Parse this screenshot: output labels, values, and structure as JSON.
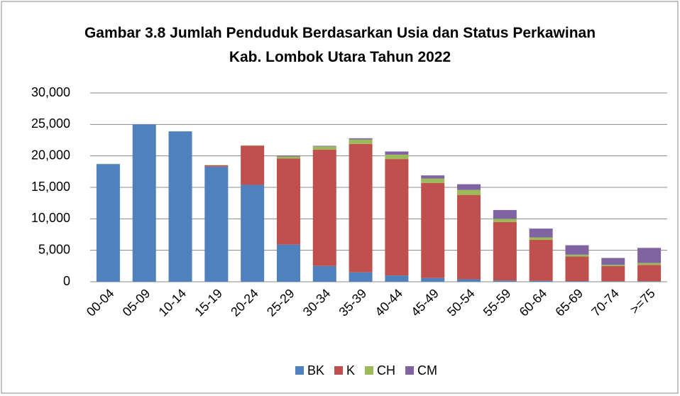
{
  "chart_data": {
    "type": "stacked_bar",
    "title": "Gambar 3.8 Jumlah Penduduk Berdasarkan Usia dan Status Perkawinan Kab. Lombok Utara Tahun 2022",
    "categories": [
      "00-04",
      "05-09",
      "10-14",
      "15-19",
      "20-24",
      "25-29",
      "30-34",
      "35-39",
      "40-44",
      "45-49",
      "50-54",
      "55-59",
      "60-64",
      "65-69",
      "70-74",
      ">=75"
    ],
    "series": [
      {
        "name": "BK",
        "color": "#4f81bd",
        "values": [
          18700,
          25000,
          23900,
          18300,
          15400,
          5900,
          2500,
          1500,
          1000,
          600,
          400,
          200,
          150,
          100,
          80,
          80
        ]
      },
      {
        "name": "K",
        "color": "#c0504d",
        "values": [
          0,
          0,
          0,
          200,
          6200,
          13700,
          18500,
          20400,
          18500,
          15100,
          13400,
          9300,
          6500,
          3900,
          2400,
          2600
        ]
      },
      {
        "name": "CH",
        "color": "#9bbb59",
        "values": [
          50,
          0,
          0,
          50,
          50,
          300,
          500,
          700,
          700,
          700,
          800,
          500,
          400,
          300,
          200,
          300
        ]
      },
      {
        "name": "CM",
        "color": "#8064a2",
        "values": [
          0,
          0,
          0,
          0,
          20,
          150,
          100,
          200,
          500,
          500,
          900,
          1400,
          1400,
          1500,
          1100,
          2400
        ]
      }
    ],
    "ylim": [
      0,
      30000
    ],
    "yticks": [
      0,
      {
        "value": 5000,
        "label": "5,000"
      },
      {
        "value": 10000,
        "label": "10,000"
      },
      {
        "value": 15000,
        "label": "15,000"
      },
      {
        "value": 20000,
        "label": "20,000"
      },
      {
        "value": 25000,
        "label": "25,000"
      },
      {
        "value": 30000,
        "label": "30,000"
      }
    ],
    "grid": true,
    "legend": "bottom"
  }
}
